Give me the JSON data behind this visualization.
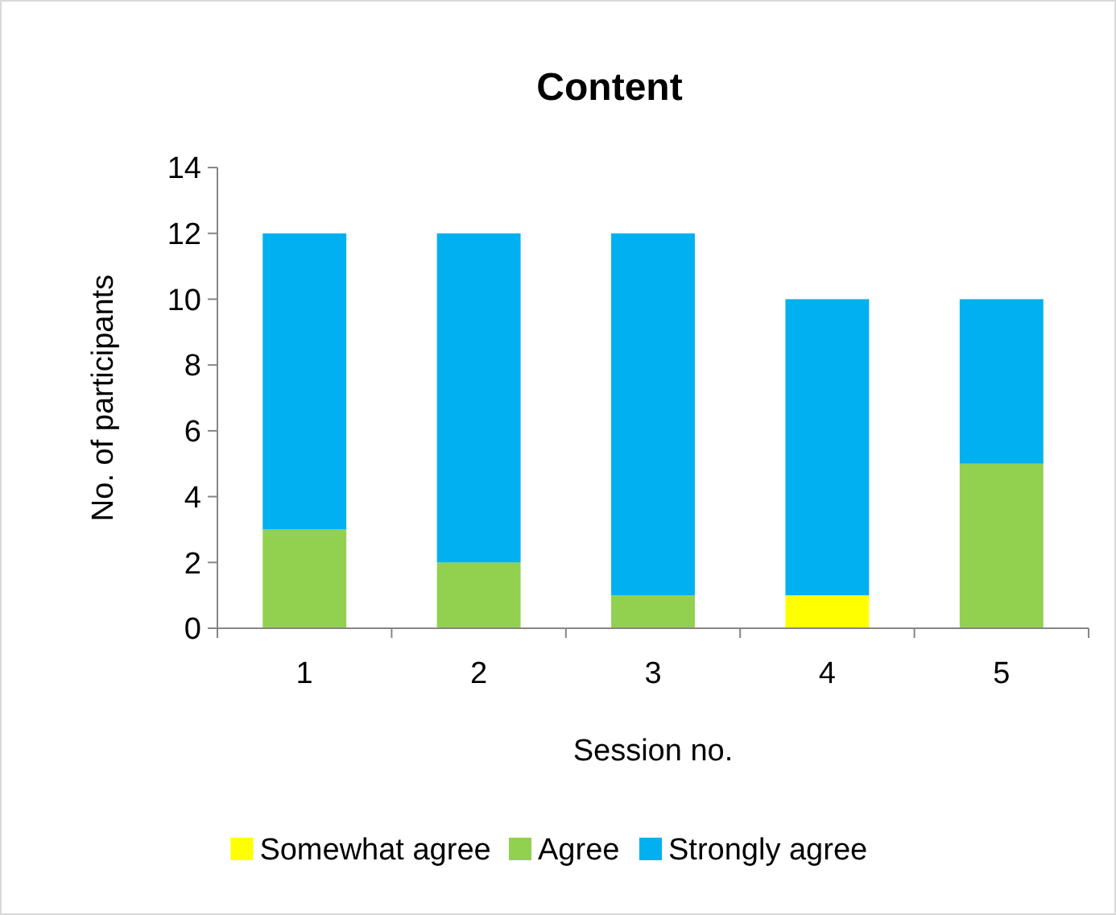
{
  "chart_data": {
    "type": "bar",
    "title": "Content",
    "xlabel": "Session no.",
    "ylabel": "No. of participants",
    "categories": [
      "1",
      "2",
      "3",
      "4",
      "5"
    ],
    "series": [
      {
        "name": "Somewhat agree",
        "color": "#ffff00",
        "values": [
          0,
          0,
          0,
          1,
          0
        ]
      },
      {
        "name": "Agree",
        "color": "#92d050",
        "values": [
          3,
          2,
          1,
          0,
          5
        ]
      },
      {
        "name": "Strongly agree",
        "color": "#00b0f0",
        "values": [
          9,
          10,
          11,
          9,
          5
        ]
      }
    ],
    "stacked": true,
    "ylim": [
      0,
      14
    ],
    "yticks": [
      0,
      2,
      4,
      6,
      8,
      10,
      12,
      14
    ],
    "legend": "bottom"
  }
}
